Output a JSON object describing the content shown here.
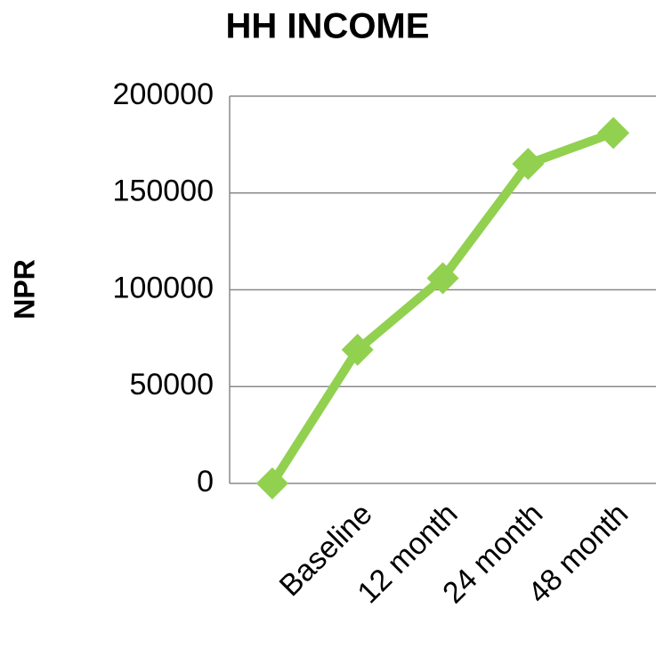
{
  "chart_data": {
    "type": "line",
    "title": "HH INCOME",
    "y_label": "NPR",
    "categories": [
      null,
      "Baseline",
      "12 month",
      "24 month",
      "48 month"
    ],
    "series": [
      {
        "name": "HH income",
        "color": "#92d050",
        "values": [
          0,
          69000,
          106000,
          165000,
          181000
        ]
      }
    ],
    "ylim": [
      0,
      200000
    ],
    "yticks": [
      0,
      50000,
      100000,
      150000,
      200000
    ],
    "grid": true
  }
}
